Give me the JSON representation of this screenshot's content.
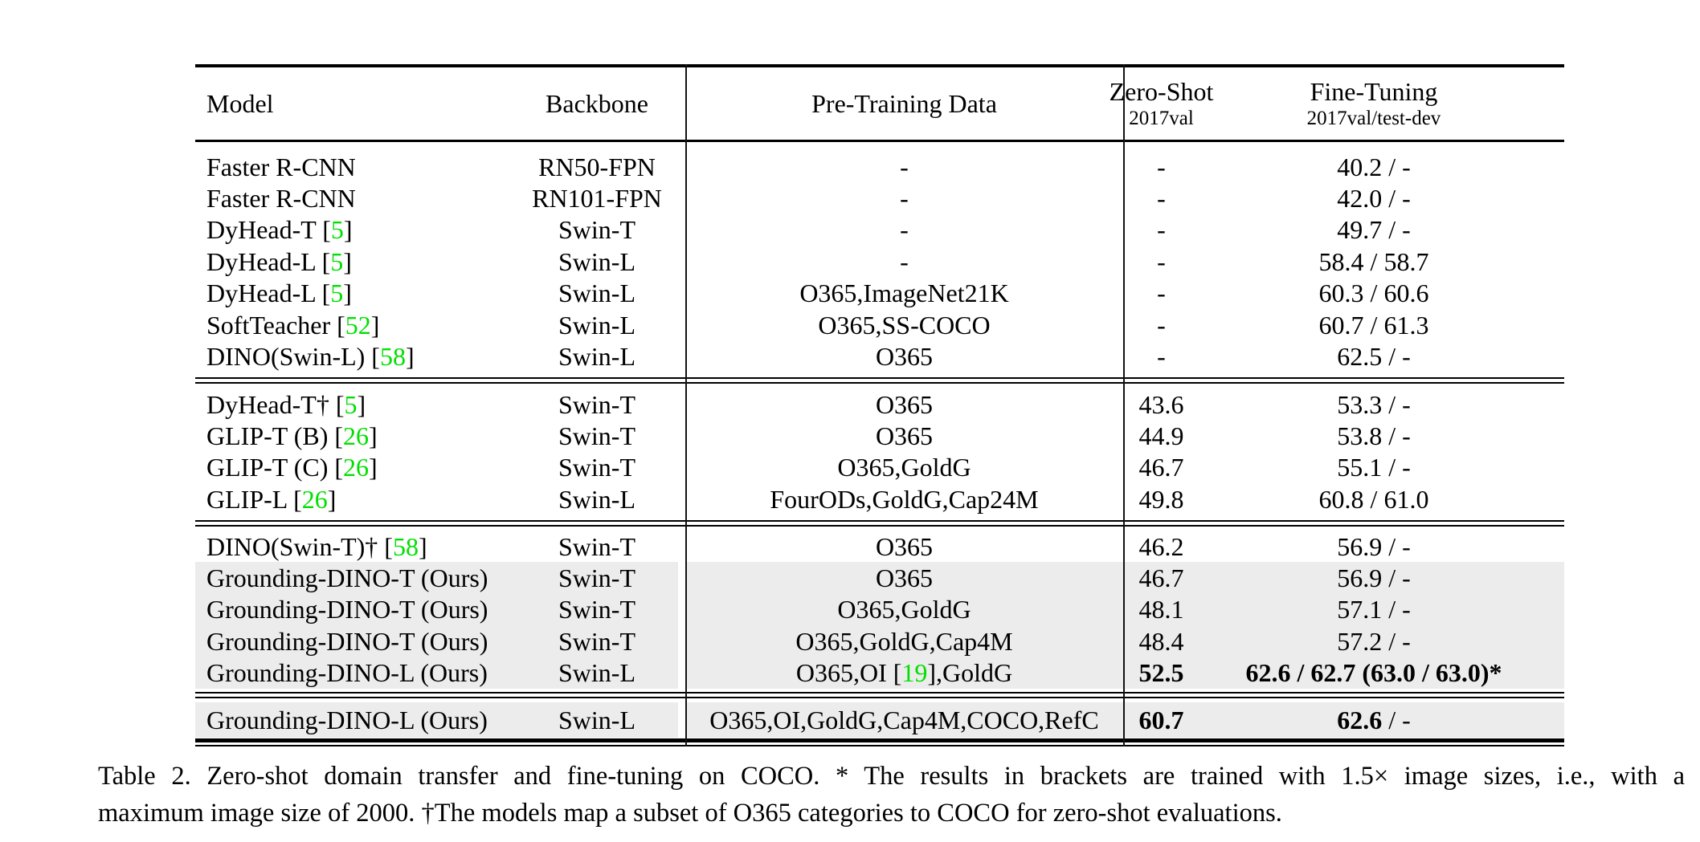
{
  "colors": {
    "citation_green": "#00e000",
    "row_highlight": "#ececec",
    "text": "#000000"
  },
  "table": {
    "header": {
      "model": "Model",
      "backbone": "Backbone",
      "pretraining": "Pre-Training Data",
      "zero_shot_line1": "Zero-Shot",
      "zero_shot_line2": "2017val",
      "fine_tuning_line1": "Fine-Tuning",
      "fine_tuning_line2": "2017val/test-dev"
    },
    "sections": [
      {
        "rows": [
          {
            "model": [
              {
                "t": "Faster R-CNN"
              }
            ],
            "backbone": "RN50-FPN",
            "pretrain": [
              {
                "t": "-"
              }
            ],
            "zs": [
              {
                "t": "-"
              }
            ],
            "ft": [
              {
                "t": "40.2 / -"
              }
            ],
            "highlight": false
          },
          {
            "model": [
              {
                "t": "Faster R-CNN"
              }
            ],
            "backbone": "RN101-FPN",
            "pretrain": [
              {
                "t": "-"
              }
            ],
            "zs": [
              {
                "t": "-"
              }
            ],
            "ft": [
              {
                "t": "42.0 / -"
              }
            ],
            "highlight": false
          },
          {
            "model": [
              {
                "t": "DyHead-T ["
              },
              {
                "t": "5",
                "c": true
              },
              {
                "t": "]"
              }
            ],
            "backbone": "Swin-T",
            "pretrain": [
              {
                "t": "-"
              }
            ],
            "zs": [
              {
                "t": "-"
              }
            ],
            "ft": [
              {
                "t": "49.7 / -"
              }
            ],
            "highlight": false
          },
          {
            "model": [
              {
                "t": "DyHead-L ["
              },
              {
                "t": "5",
                "c": true
              },
              {
                "t": "]"
              }
            ],
            "backbone": "Swin-L",
            "pretrain": [
              {
                "t": "-"
              }
            ],
            "zs": [
              {
                "t": "-"
              }
            ],
            "ft": [
              {
                "t": "58.4 / 58.7"
              }
            ],
            "highlight": false
          },
          {
            "model": [
              {
                "t": "DyHead-L ["
              },
              {
                "t": "5",
                "c": true
              },
              {
                "t": "]"
              }
            ],
            "backbone": "Swin-L",
            "pretrain": [
              {
                "t": "O365,ImageNet21K"
              }
            ],
            "zs": [
              {
                "t": "-"
              }
            ],
            "ft": [
              {
                "t": "60.3 / 60.6"
              }
            ],
            "highlight": false
          },
          {
            "model": [
              {
                "t": "SoftTeacher ["
              },
              {
                "t": "52",
                "c": true
              },
              {
                "t": "]"
              }
            ],
            "backbone": "Swin-L",
            "pretrain": [
              {
                "t": "O365,SS-COCO"
              }
            ],
            "zs": [
              {
                "t": "-"
              }
            ],
            "ft": [
              {
                "t": "60.7 / 61.3"
              }
            ],
            "highlight": false
          },
          {
            "model": [
              {
                "t": "DINO(Swin-L) ["
              },
              {
                "t": "58",
                "c": true
              },
              {
                "t": "]"
              }
            ],
            "backbone": "Swin-L",
            "pretrain": [
              {
                "t": "O365"
              }
            ],
            "zs": [
              {
                "t": "-"
              }
            ],
            "ft": [
              {
                "t": "62.5 / -"
              }
            ],
            "highlight": false
          }
        ]
      },
      {
        "rows": [
          {
            "model": [
              {
                "t": "DyHead-T† ["
              },
              {
                "t": "5",
                "c": true
              },
              {
                "t": "]"
              }
            ],
            "backbone": "Swin-T",
            "pretrain": [
              {
                "t": "O365"
              }
            ],
            "zs": [
              {
                "t": "43.6"
              }
            ],
            "ft": [
              {
                "t": "53.3 / -"
              }
            ],
            "highlight": false
          },
          {
            "model": [
              {
                "t": "GLIP-T (B) ["
              },
              {
                "t": "26",
                "c": true
              },
              {
                "t": "]"
              }
            ],
            "backbone": "Swin-T",
            "pretrain": [
              {
                "t": "O365"
              }
            ],
            "zs": [
              {
                "t": "44.9"
              }
            ],
            "ft": [
              {
                "t": "53.8 / -"
              }
            ],
            "highlight": false
          },
          {
            "model": [
              {
                "t": "GLIP-T (C) ["
              },
              {
                "t": "26",
                "c": true
              },
              {
                "t": "]"
              }
            ],
            "backbone": "Swin-T",
            "pretrain": [
              {
                "t": "O365,GoldG"
              }
            ],
            "zs": [
              {
                "t": "46.7"
              }
            ],
            "ft": [
              {
                "t": "55.1 / -"
              }
            ],
            "highlight": false
          },
          {
            "model": [
              {
                "t": "GLIP-L ["
              },
              {
                "t": "26",
                "c": true
              },
              {
                "t": "]"
              }
            ],
            "backbone": "Swin-L",
            "pretrain": [
              {
                "t": "FourODs,GoldG,Cap24M"
              }
            ],
            "zs": [
              {
                "t": "49.8"
              }
            ],
            "ft": [
              {
                "t": "60.8 / 61.0"
              }
            ],
            "highlight": false
          }
        ]
      },
      {
        "rows": [
          {
            "model": [
              {
                "t": "DINO(Swin-T)† ["
              },
              {
                "t": "58",
                "c": true
              },
              {
                "t": "]"
              }
            ],
            "backbone": "Swin-T",
            "pretrain": [
              {
                "t": "O365"
              }
            ],
            "zs": [
              {
                "t": "46.2"
              }
            ],
            "ft": [
              {
                "t": "56.9 / -"
              }
            ],
            "highlight": false
          },
          {
            "model": [
              {
                "t": "Grounding-DINO-T (Ours)"
              }
            ],
            "backbone": "Swin-T",
            "pretrain": [
              {
                "t": "O365"
              }
            ],
            "zs": [
              {
                "t": "46.7"
              }
            ],
            "ft": [
              {
                "t": "56.9 / -"
              }
            ],
            "highlight": true
          },
          {
            "model": [
              {
                "t": "Grounding-DINO-T (Ours)"
              }
            ],
            "backbone": "Swin-T",
            "pretrain": [
              {
                "t": "O365,GoldG"
              }
            ],
            "zs": [
              {
                "t": "48.1"
              }
            ],
            "ft": [
              {
                "t": "57.1 / -"
              }
            ],
            "highlight": true
          },
          {
            "model": [
              {
                "t": "Grounding-DINO-T (Ours)"
              }
            ],
            "backbone": "Swin-T",
            "pretrain": [
              {
                "t": "O365,GoldG,Cap4M"
              }
            ],
            "zs": [
              {
                "t": "48.4"
              }
            ],
            "ft": [
              {
                "t": "57.2 / -"
              }
            ],
            "highlight": true
          },
          {
            "model": [
              {
                "t": "Grounding-DINO-L (Ours)"
              }
            ],
            "backbone": "Swin-L",
            "pretrain": [
              {
                "t": "O365,OI ["
              },
              {
                "t": "19",
                "c": true
              },
              {
                "t": "],GoldG"
              }
            ],
            "zs": [
              {
                "t": "52.5",
                "b": true
              }
            ],
            "ft": [
              {
                "t": "62.6 / 62.7 (63.0 / 63.0)*",
                "b": true
              }
            ],
            "highlight": true
          }
        ]
      },
      {
        "rows": [
          {
            "model": [
              {
                "t": "Grounding-DINO-L (Ours)"
              }
            ],
            "backbone": "Swin-L",
            "pretrain": [
              {
                "t": "O365,OI,GoldG,Cap4M,COCO,RefC"
              }
            ],
            "zs": [
              {
                "t": "60.7",
                "b": true
              }
            ],
            "ft": [
              {
                "t": "62.6",
                "b": true
              },
              {
                "t": " / -"
              }
            ],
            "highlight": true
          }
        ]
      }
    ]
  },
  "caption": {
    "line1": "Table 2.  Zero-shot domain transfer and fine-tuning on COCO. * The results in brackets are trained with 1.5× image sizes, i.e., with a",
    "line2": "maximum image size of 2000. †The models map a subset of O365 categories to COCO for zero-shot evaluations."
  }
}
